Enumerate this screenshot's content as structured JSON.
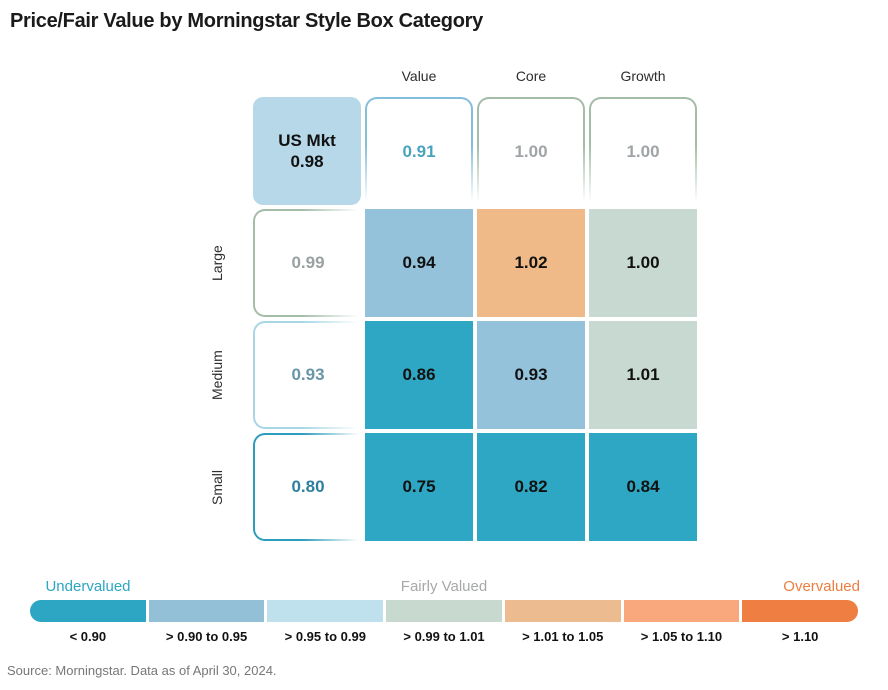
{
  "page": {
    "title": "Price/Fair Value by Morningstar Style Box Category",
    "source": "Source: Morningstar. Data as of April 30, 2024."
  },
  "chart_data": {
    "type": "heatmap",
    "title": "Price/Fair Value by Morningstar Style Box Category",
    "columns": [
      "Value",
      "Core",
      "Growth"
    ],
    "rows": [
      "Large",
      "Medium",
      "Small"
    ],
    "us_market": {
      "label": "US Mkt",
      "value": "0.98"
    },
    "column_totals": [
      "0.91",
      "1.00",
      "1.00"
    ],
    "row_totals": [
      "0.99",
      "0.93",
      "0.80"
    ],
    "values": [
      [
        "0.94",
        "1.02",
        "1.00"
      ],
      [
        "0.86",
        "0.93",
        "1.01"
      ],
      [
        "0.75",
        "0.82",
        "0.84"
      ]
    ],
    "legend": {
      "labels": [
        "Undervalued",
        "Fairly Valued",
        "Overvalued"
      ],
      "buckets": [
        "< 0.90",
        "> 0.90 to 0.95",
        "> 0.95 to 0.99",
        "> 0.99 to 1.01",
        "> 1.01 to 1.05",
        "> 1.05 to 1.10",
        "> 1.10"
      ]
    }
  },
  "styles": {
    "us_market_bg": "#b7d8e9",
    "cell_bg": [
      [
        "#93c2da",
        "#f0ba88",
        "#c7d9d0"
      ],
      [
        "#2da7c3",
        "#93c2da",
        "#c7d9d0"
      ],
      [
        "#2da7c3",
        "#2da7c3",
        "#2da7c3"
      ]
    ],
    "col_total_border": [
      "#85bedb",
      "#a3bda9",
      "#a3bda9"
    ],
    "col_total_text": [
      "#4aa3be",
      "#9fa4a6",
      "#9fa4a6"
    ],
    "row_total_border": [
      "#a3bda9",
      "#a8d6e6",
      "#2d9cbd"
    ],
    "row_total_text": [
      "#9aa0a2",
      "#6996a6",
      "#2e7f9f"
    ],
    "legend_segment_colors": [
      "#2ca6c2",
      "#93bfd7",
      "#bfe0ed",
      "#c8d9cf",
      "#edbb90",
      "#f9a87e",
      "#ee7e41"
    ],
    "legend_label_colors": [
      "#2ca6c2",
      "#a6a8aa",
      "#ed7d3f"
    ]
  }
}
